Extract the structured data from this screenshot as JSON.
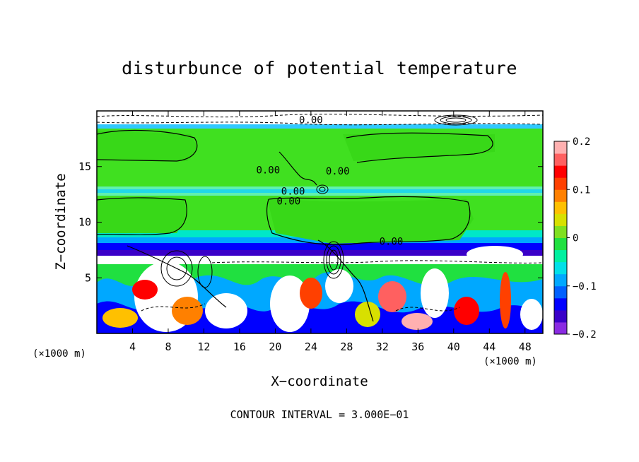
{
  "chart_data": {
    "type": "heatmap",
    "title": "disturbunce of potential temperature",
    "xlabel": "X−coordinate",
    "ylabel": "Z−coordinate",
    "x_unit_label": "(×1000 m)",
    "z_unit_label": "(×1000 m)",
    "footer": "CONTOUR INTERVAL = 3.000E−01",
    "xlim": [
      0,
      50
    ],
    "ylim": [
      0,
      20
    ],
    "x_ticks": [
      4,
      8,
      12,
      16,
      20,
      24,
      28,
      32,
      36,
      40,
      44,
      48
    ],
    "y_ticks": [
      5,
      10,
      15
    ],
    "colorbar": {
      "range": [
        -0.2,
        0.2
      ],
      "ticks": [
        {
          "value": 0.2,
          "label": "0.2"
        },
        {
          "value": 0.1,
          "label": "0.1"
        },
        {
          "value": 0,
          "label": "0"
        },
        {
          "value": -0.1,
          "label": "−0.1"
        },
        {
          "value": -0.2,
          "label": "−0.2"
        }
      ],
      "colors": [
        "#8a2be2",
        "#3a00c8",
        "#0000ff",
        "#0060ff",
        "#00a8ff",
        "#00e0e8",
        "#00f0a0",
        "#20e040",
        "#80e020",
        "#d8e000",
        "#ffc000",
        "#ff8000",
        "#ff4000",
        "#ff0000",
        "#ff6060",
        "#ffb0b0"
      ]
    },
    "contour_labels": [
      {
        "x": 22.0,
        "z": 12.8,
        "text": "0.00"
      },
      {
        "x": 21.5,
        "z": 11.9,
        "text": "0.00"
      },
      {
        "x": 33.0,
        "z": 8.3,
        "text": "0.00"
      },
      {
        "x": 24.0,
        "z": 19.2,
        "text": "0.00"
      },
      {
        "x": 19.2,
        "z": 14.7,
        "text": "0.00"
      },
      {
        "x": 27.0,
        "z": 14.6,
        "text": "0.00"
      }
    ]
  }
}
